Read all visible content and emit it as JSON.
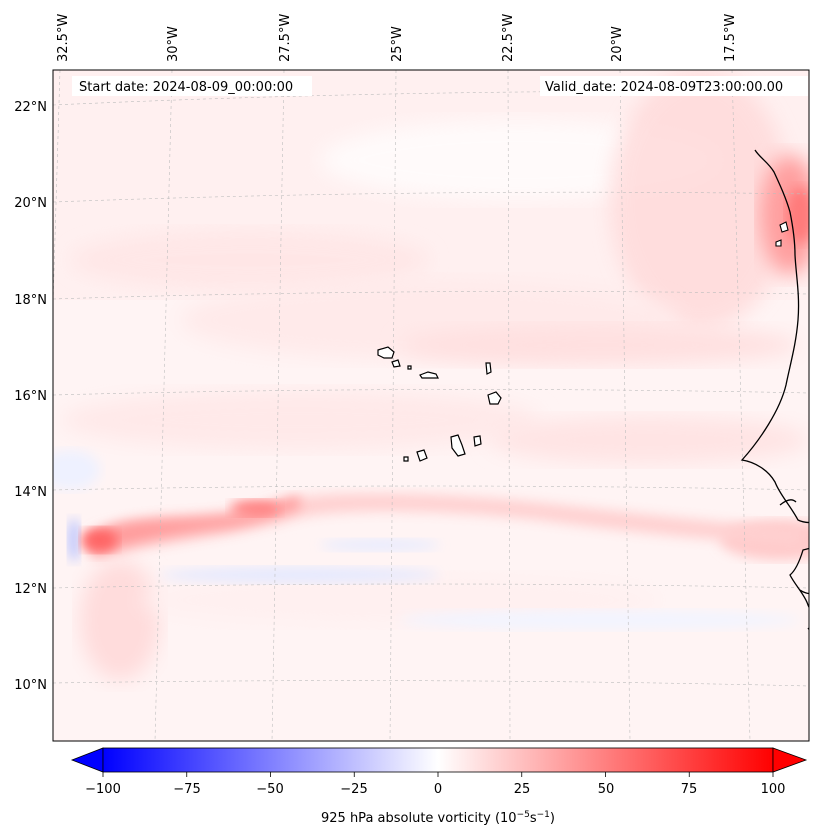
{
  "map": {
    "start_date_label": "Start date: 2024-08-09_00:00:00",
    "valid_date_label": "Valid_date: 2024-08-09T23:00:00.00",
    "lon_labels": [
      "32.5°W",
      "30°W",
      "27.5°W",
      "25°W",
      "22.5°W",
      "20°W",
      "17.5°W"
    ],
    "lat_labels": [
      "22°N",
      "20°N",
      "18°N",
      "16°N",
      "14°N",
      "12°N",
      "10°N"
    ],
    "field": "925 hPa absolute vorticity",
    "colors": {
      "negative": "#0000ff",
      "zero": "#ffffff",
      "positive": "#ff0000"
    }
  },
  "colorbar": {
    "ticks": [
      "−100",
      "−75",
      "−50",
      "−25",
      "0",
      "25",
      "50",
      "75",
      "100"
    ],
    "min": -100,
    "max": 100,
    "label_main": "925 hPa absolute vorticity (10",
    "label_exp1": "−5",
    "label_mid": "s",
    "label_exp2": "−1",
    "label_end": ")"
  }
}
